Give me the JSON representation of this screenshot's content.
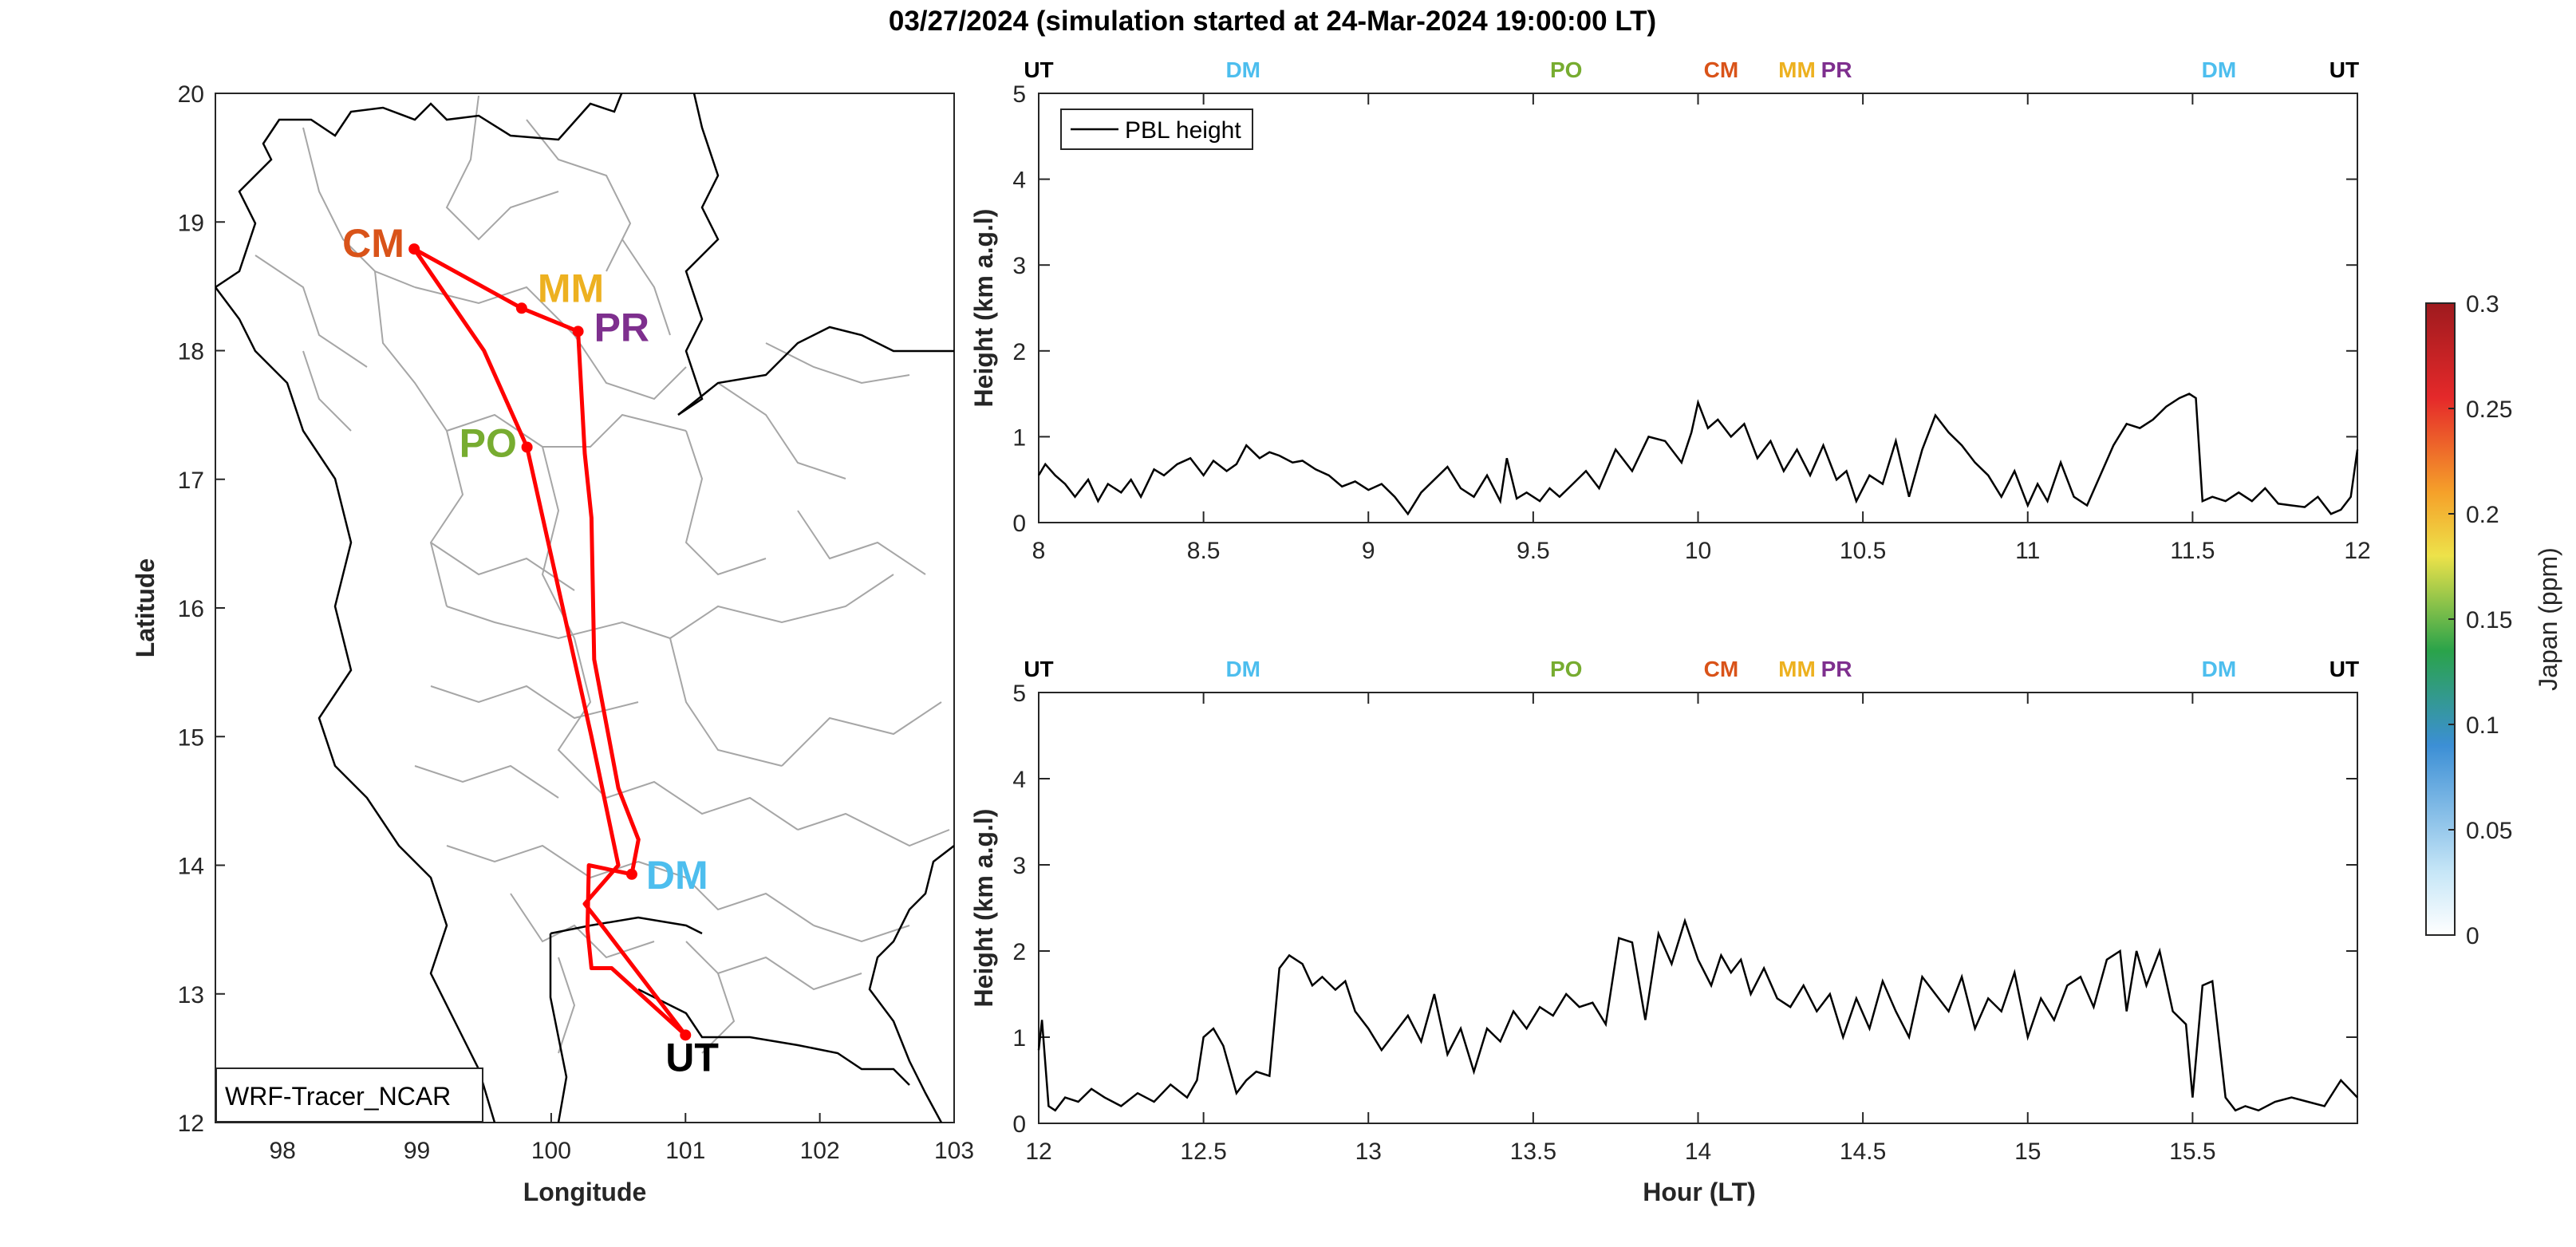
{
  "figure": {
    "title": "03/27/2024 (simulation started at 24-Mar-2024 19:00:00 LT)"
  },
  "colors": {
    "UT": "#000000",
    "DM": "#4dbeee",
    "PO": "#77ac30",
    "CM": "#d95319",
    "MM": "#edb120",
    "PR": "#7e2f8e",
    "route": "#ff0000",
    "border": "#000000",
    "province": "#a6a6a6"
  },
  "chart_data": [
    {
      "type": "map",
      "name": "map",
      "xlabel": "Longitude",
      "ylabel": "Latitude",
      "xlim": [
        97.5,
        103
      ],
      "ylim": [
        12,
        20
      ],
      "xticks": [
        98,
        99,
        100,
        101,
        102,
        103
      ],
      "yticks": [
        12,
        13,
        14,
        15,
        16,
        17,
        18,
        19,
        20
      ],
      "box_label": "WRF-Tracer_NCAR",
      "stations": [
        {
          "code": "CM",
          "lon": 98.98,
          "lat": 18.79
        },
        {
          "code": "MM",
          "lon": 99.78,
          "lat": 18.33
        },
        {
          "code": "PR",
          "lon": 100.2,
          "lat": 18.15
        },
        {
          "code": "PO",
          "lon": 99.82,
          "lat": 17.25
        },
        {
          "code": "DM",
          "lon": 100.6,
          "lat": 13.93
        },
        {
          "code": "UT",
          "lon": 101.0,
          "lat": 12.68
        }
      ],
      "route": [
        [
          101.0,
          12.68
        ],
        [
          100.45,
          13.2
        ],
        [
          100.3,
          13.2
        ],
        [
          100.27,
          13.5
        ],
        [
          100.28,
          14.0
        ],
        [
          100.6,
          13.93
        ],
        [
          100.65,
          14.2
        ],
        [
          100.5,
          14.6
        ],
        [
          100.32,
          15.6
        ],
        [
          100.3,
          16.7
        ],
        [
          100.25,
          17.2
        ],
        [
          100.2,
          18.15
        ],
        [
          99.78,
          18.33
        ],
        [
          98.98,
          18.79
        ],
        [
          99.5,
          18.0
        ],
        [
          99.82,
          17.25
        ],
        [
          100.3,
          15.0
        ],
        [
          100.5,
          14.0
        ],
        [
          100.25,
          13.7
        ],
        [
          100.4,
          13.5
        ],
        [
          101.0,
          12.68
        ]
      ]
    },
    {
      "type": "line",
      "name": "pbl-top",
      "ylabel": "Height (km a.g.l)",
      "xlabel": "",
      "xlim": [
        8,
        12
      ],
      "ylim": [
        0,
        5
      ],
      "xticks": [
        8,
        8.5,
        9,
        9.5,
        10,
        10.5,
        11,
        11.5,
        12
      ],
      "yticks": [
        0,
        1,
        2,
        3,
        4,
        5
      ],
      "legend": "PBL height",
      "markers": [
        {
          "label": "UT",
          "x": 8.0
        },
        {
          "label": "DM",
          "x": 8.62
        },
        {
          "label": "PO",
          "x": 9.6
        },
        {
          "label": "CM",
          "x": 10.07
        },
        {
          "label": "MM",
          "x": 10.3
        },
        {
          "label": "PR",
          "x": 10.42
        },
        {
          "label": "DM",
          "x": 11.58
        },
        {
          "label": "UT",
          "x": 11.96
        }
      ],
      "x": [
        8.0,
        8.02,
        8.05,
        8.08,
        8.11,
        8.15,
        8.18,
        8.21,
        8.25,
        8.28,
        8.31,
        8.35,
        8.38,
        8.42,
        8.46,
        8.5,
        8.53,
        8.57,
        8.6,
        8.63,
        8.67,
        8.7,
        8.73,
        8.77,
        8.8,
        8.84,
        8.88,
        8.92,
        8.96,
        9.0,
        9.04,
        9.08,
        9.12,
        9.16,
        9.2,
        9.24,
        9.28,
        9.32,
        9.36,
        9.4,
        9.42,
        9.45,
        9.48,
        9.52,
        9.55,
        9.58,
        9.62,
        9.66,
        9.7,
        9.75,
        9.8,
        9.85,
        9.9,
        9.95,
        9.98,
        10.0,
        10.03,
        10.06,
        10.1,
        10.14,
        10.18,
        10.22,
        10.26,
        10.3,
        10.34,
        10.38,
        10.42,
        10.45,
        10.48,
        10.52,
        10.56,
        10.6,
        10.64,
        10.68,
        10.72,
        10.76,
        10.8,
        10.84,
        10.88,
        10.92,
        10.96,
        11.0,
        11.03,
        11.06,
        11.1,
        11.14,
        11.18,
        11.22,
        11.26,
        11.3,
        11.34,
        11.38,
        11.42,
        11.46,
        11.49,
        11.51,
        11.53,
        11.56,
        11.6,
        11.64,
        11.68,
        11.72,
        11.76,
        11.8,
        11.84,
        11.88,
        11.92,
        11.95,
        11.98,
        12.0
      ],
      "y": [
        0.55,
        0.68,
        0.55,
        0.45,
        0.3,
        0.5,
        0.25,
        0.45,
        0.35,
        0.5,
        0.3,
        0.62,
        0.55,
        0.68,
        0.75,
        0.55,
        0.72,
        0.6,
        0.68,
        0.9,
        0.75,
        0.82,
        0.78,
        0.7,
        0.72,
        0.62,
        0.55,
        0.42,
        0.48,
        0.38,
        0.45,
        0.3,
        0.1,
        0.35,
        0.5,
        0.65,
        0.4,
        0.3,
        0.55,
        0.25,
        0.75,
        0.28,
        0.35,
        0.25,
        0.4,
        0.3,
        0.45,
        0.6,
        0.4,
        0.85,
        0.6,
        1.0,
        0.95,
        0.7,
        1.05,
        1.4,
        1.1,
        1.2,
        1.0,
        1.15,
        0.75,
        0.95,
        0.6,
        0.85,
        0.55,
        0.9,
        0.5,
        0.6,
        0.25,
        0.55,
        0.45,
        0.95,
        0.3,
        0.85,
        1.25,
        1.05,
        0.9,
        0.7,
        0.55,
        0.3,
        0.6,
        0.2,
        0.45,
        0.25,
        0.7,
        0.3,
        0.2,
        0.55,
        0.9,
        1.15,
        1.1,
        1.2,
        1.35,
        1.45,
        1.5,
        1.45,
        0.25,
        0.3,
        0.25,
        0.35,
        0.25,
        0.4,
        0.22,
        0.2,
        0.18,
        0.3,
        0.1,
        0.15,
        0.3,
        0.85
      ]
    },
    {
      "type": "line",
      "name": "pbl-bottom",
      "ylabel": "Height (km a.g.l)",
      "xlabel": "Hour (LT)",
      "xlim": [
        12,
        16
      ],
      "ylim": [
        0,
        5
      ],
      "xticks": [
        12,
        12.5,
        13,
        13.5,
        14,
        14.5,
        15,
        15.5
      ],
      "yticks": [
        0,
        1,
        2,
        3,
        4,
        5
      ],
      "markers": [
        {
          "label": "UT",
          "x": 12.0
        },
        {
          "label": "DM",
          "x": 12.62
        },
        {
          "label": "PO",
          "x": 13.6
        },
        {
          "label": "CM",
          "x": 14.07
        },
        {
          "label": "MM",
          "x": 14.3
        },
        {
          "label": "PR",
          "x": 14.42
        },
        {
          "label": "DM",
          "x": 15.58
        },
        {
          "label": "UT",
          "x": 15.96
        }
      ],
      "x": [
        12.0,
        12.01,
        12.03,
        12.05,
        12.08,
        12.12,
        12.16,
        12.2,
        12.25,
        12.3,
        12.35,
        12.4,
        12.45,
        12.48,
        12.5,
        12.53,
        12.56,
        12.6,
        12.63,
        12.66,
        12.7,
        12.73,
        12.76,
        12.8,
        12.83,
        12.86,
        12.9,
        12.93,
        12.96,
        13.0,
        13.04,
        13.08,
        13.12,
        13.16,
        13.2,
        13.24,
        13.28,
        13.32,
        13.36,
        13.4,
        13.44,
        13.48,
        13.52,
        13.56,
        13.6,
        13.64,
        13.68,
        13.72,
        13.76,
        13.8,
        13.84,
        13.88,
        13.92,
        13.96,
        14.0,
        14.04,
        14.07,
        14.1,
        14.13,
        14.16,
        14.2,
        14.24,
        14.28,
        14.32,
        14.36,
        14.4,
        14.44,
        14.48,
        14.52,
        14.56,
        14.6,
        14.64,
        14.68,
        14.72,
        14.76,
        14.8,
        14.84,
        14.88,
        14.92,
        14.96,
        15.0,
        15.04,
        15.08,
        15.12,
        15.16,
        15.2,
        15.24,
        15.28,
        15.3,
        15.33,
        15.36,
        15.4,
        15.44,
        15.48,
        15.5,
        15.53,
        15.56,
        15.6,
        15.63,
        15.66,
        15.7,
        15.75,
        15.8,
        15.85,
        15.9,
        15.95,
        16.0
      ],
      "y": [
        0.85,
        1.2,
        0.2,
        0.15,
        0.3,
        0.25,
        0.4,
        0.3,
        0.2,
        0.35,
        0.25,
        0.45,
        0.3,
        0.5,
        1.0,
        1.1,
        0.9,
        0.35,
        0.5,
        0.6,
        0.55,
        1.8,
        1.95,
        1.85,
        1.6,
        1.7,
        1.55,
        1.65,
        1.3,
        1.1,
        0.85,
        1.05,
        1.25,
        0.95,
        1.5,
        0.8,
        1.1,
        0.6,
        1.1,
        0.95,
        1.3,
        1.1,
        1.35,
        1.25,
        1.5,
        1.35,
        1.4,
        1.15,
        2.15,
        2.1,
        1.2,
        2.2,
        1.85,
        2.35,
        1.9,
        1.6,
        1.95,
        1.75,
        1.9,
        1.5,
        1.8,
        1.45,
        1.35,
        1.6,
        1.3,
        1.5,
        1.0,
        1.45,
        1.1,
        1.65,
        1.3,
        1.0,
        1.7,
        1.5,
        1.3,
        1.7,
        1.1,
        1.45,
        1.3,
        1.75,
        1.0,
        1.45,
        1.2,
        1.6,
        1.7,
        1.35,
        1.9,
        2.0,
        1.3,
        2.0,
        1.6,
        2.0,
        1.3,
        1.15,
        0.3,
        1.6,
        1.65,
        0.3,
        0.15,
        0.2,
        0.15,
        0.25,
        0.3,
        0.25,
        0.2,
        0.5,
        0.3
      ]
    },
    {
      "type": "colorbar",
      "name": "colorbar",
      "label": "Japan (ppm)",
      "lim": [
        0,
        0.3
      ],
      "ticks": [
        0,
        0.05,
        0.1,
        0.15,
        0.2,
        0.25,
        0.3
      ],
      "tick_labels": [
        "0",
        "0.05",
        "0.1",
        "0.15",
        "0.2",
        "0.25",
        "0.3"
      ]
    }
  ]
}
